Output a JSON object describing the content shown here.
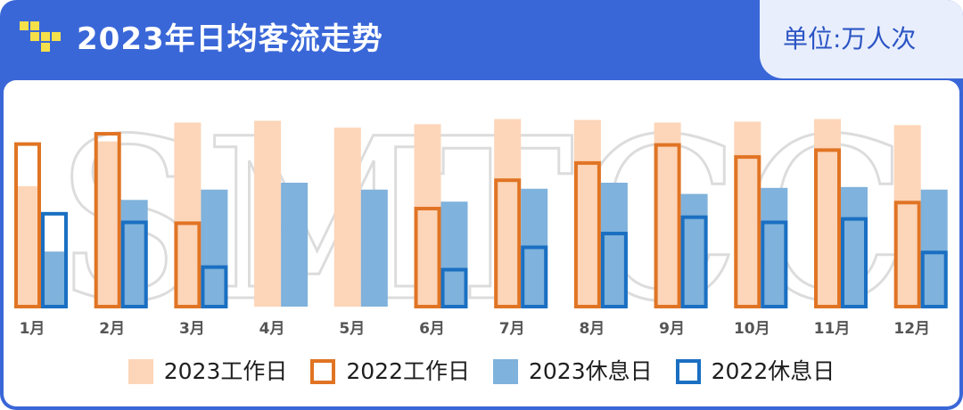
{
  "header": {
    "title": "2023年日均客流走势",
    "unit": "单位:万人次"
  },
  "watermark": "SMTCC",
  "colors": {
    "header_bg": "#3a67d8",
    "work_2023": "#fdd5b8",
    "work_2022": "#e07424",
    "rest_2023": "#7fb2dc",
    "rest_2022": "#1a6fc2",
    "logo": "#f5e04a"
  },
  "chart_data": {
    "type": "bar",
    "categories": [
      "1月",
      "2月",
      "3月",
      "4月",
      "5月",
      "6月",
      "7月",
      "8月",
      "9月",
      "10月",
      "11月",
      "12月"
    ],
    "series": [
      {
        "name": "2023工作日",
        "style": "filled",
        "values": [
          140,
          192,
          214,
          216,
          208,
          212,
          218,
          217,
          214,
          215,
          218,
          211
        ]
      },
      {
        "name": "2022工作日",
        "style": "outline",
        "values": [
          191,
          203,
          99,
          null,
          null,
          116,
          149,
          169,
          190,
          176,
          184,
          123
        ]
      },
      {
        "name": "2023休息日",
        "style": "filled",
        "values": [
          64,
          124,
          136,
          144,
          136,
          122,
          137,
          144,
          131,
          138,
          139,
          136
        ]
      },
      {
        "name": "2022休息日",
        "style": "outline",
        "values": [
          110,
          100,
          48,
          null,
          null,
          45,
          71,
          87,
          106,
          100,
          104,
          65
        ]
      }
    ],
    "ylim": [
      0,
      230
    ],
    "grid": false,
    "legend": "bottom"
  }
}
